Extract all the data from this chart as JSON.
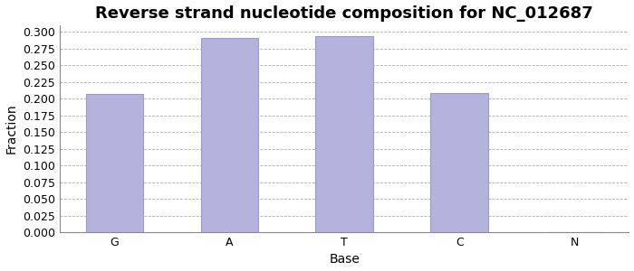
{
  "title": "Reverse strand nucleotide composition for NC_012687",
  "xlabel": "Base",
  "ylabel": "Fraction",
  "categories": [
    "G",
    "A",
    "T",
    "C",
    "N"
  ],
  "values": [
    0.207,
    0.291,
    0.293,
    0.208,
    0.0
  ],
  "bar_color": "#b3b3dd",
  "bar_edgecolor": "#9999cc",
  "ylim": [
    0.0,
    0.3099
  ],
  "yticks": [
    0.0,
    0.025,
    0.05,
    0.075,
    0.1,
    0.125,
    0.15,
    0.175,
    0.2,
    0.225,
    0.25,
    0.275,
    0.3
  ],
  "grid_color": "#888888",
  "bg_color": "#ffffff",
  "plot_bg_color": "#ffffff",
  "title_fontsize": 13,
  "axis_fontsize": 10,
  "tick_fontsize": 9,
  "bar_width": 0.5
}
